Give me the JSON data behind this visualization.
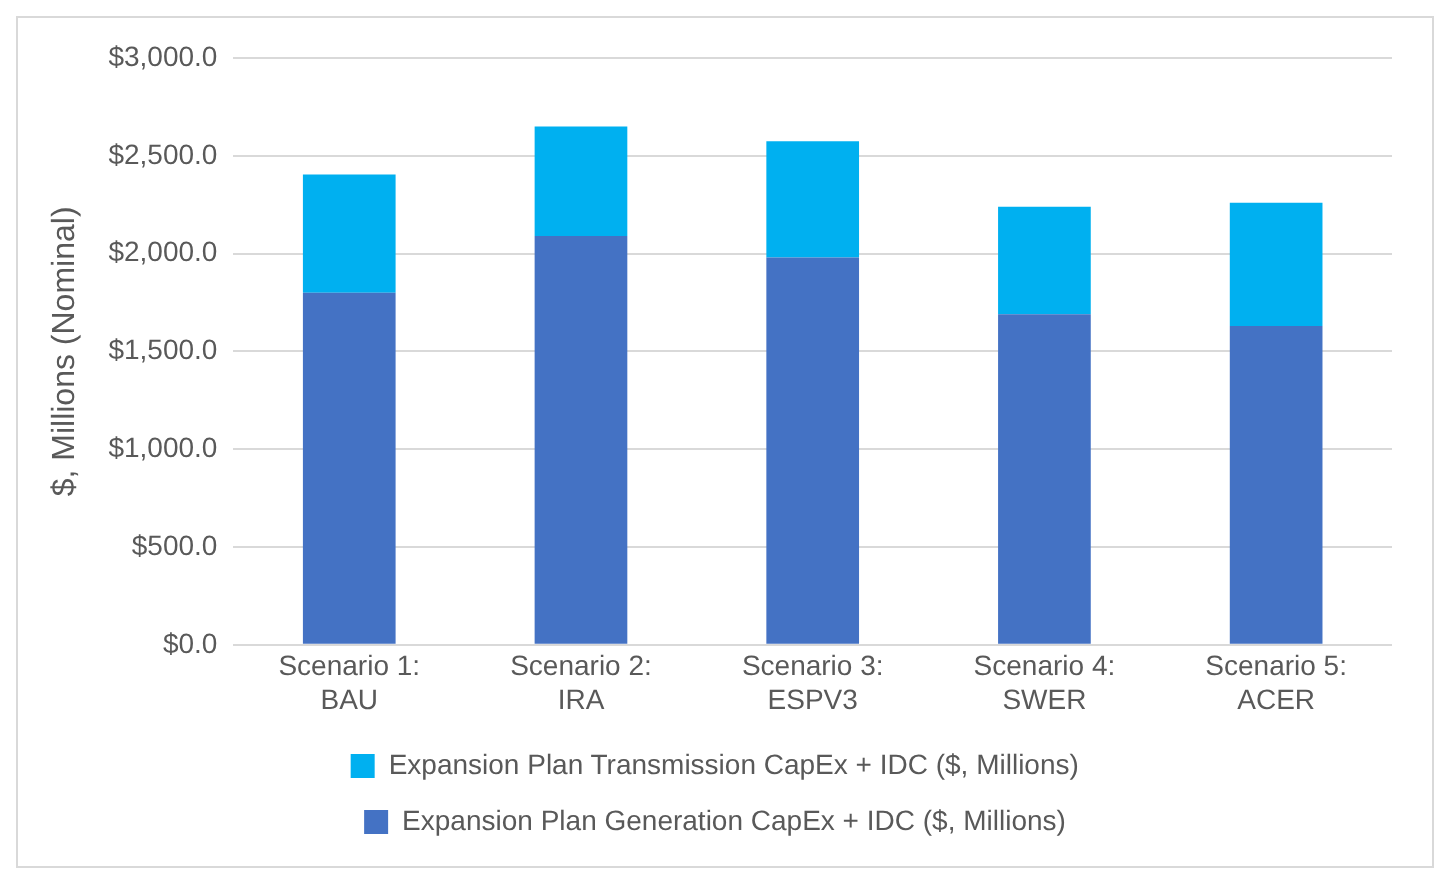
{
  "chart_data": {
    "type": "bar",
    "stacked": true,
    "ylabel": "$, Millions (Nominal)",
    "categories": [
      "Scenario 1:\nBAU",
      "Scenario 2:\nIRA",
      "Scenario 3:\nESPV3",
      "Scenario 4:\nSWER",
      "Scenario 5:\nACER"
    ],
    "series": [
      {
        "name": "Expansion Plan Generation CapEx + IDC ($, Millions)",
        "color": "#4472c4",
        "values": [
          1800,
          2090,
          1980,
          1690,
          1630
        ]
      },
      {
        "name": "Expansion Plan Transmission CapEx + IDC ($, Millions)",
        "color": "#00b0f0",
        "values": [
          605,
          560,
          595,
          550,
          630
        ]
      }
    ],
    "ylim": [
      0,
      3000
    ],
    "yticks": [
      {
        "value": 0,
        "label": "$0.0"
      },
      {
        "value": 500,
        "label": "$500.0"
      },
      {
        "value": 1000,
        "label": "$1,000.0"
      },
      {
        "value": 1500,
        "label": "$1,500.0"
      },
      {
        "value": 2000,
        "label": "$2,000.0"
      },
      {
        "value": 2500,
        "label": "$2,500.0"
      },
      {
        "value": 3000,
        "label": "$3,000.0"
      }
    ],
    "grid": "y",
    "legend": "bottom"
  }
}
